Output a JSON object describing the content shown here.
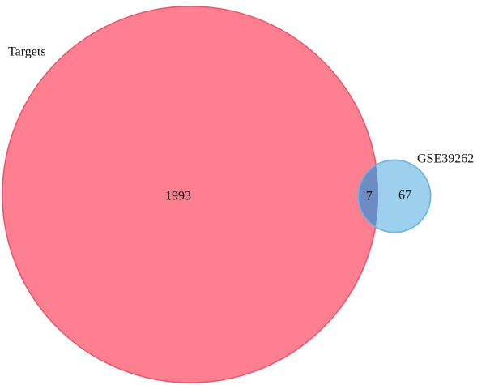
{
  "chart_data": {
    "type": "venn",
    "sets": [
      {
        "name": "Targets",
        "color": "#fd7f90",
        "stroke": "#e8556d",
        "value": 1993
      },
      {
        "name": "GSE39262",
        "color": "#9dd0ec",
        "stroke": "#6cb5e0",
        "value": 67
      }
    ],
    "intersection": 7,
    "intersection_color": "#6d8cc4"
  }
}
